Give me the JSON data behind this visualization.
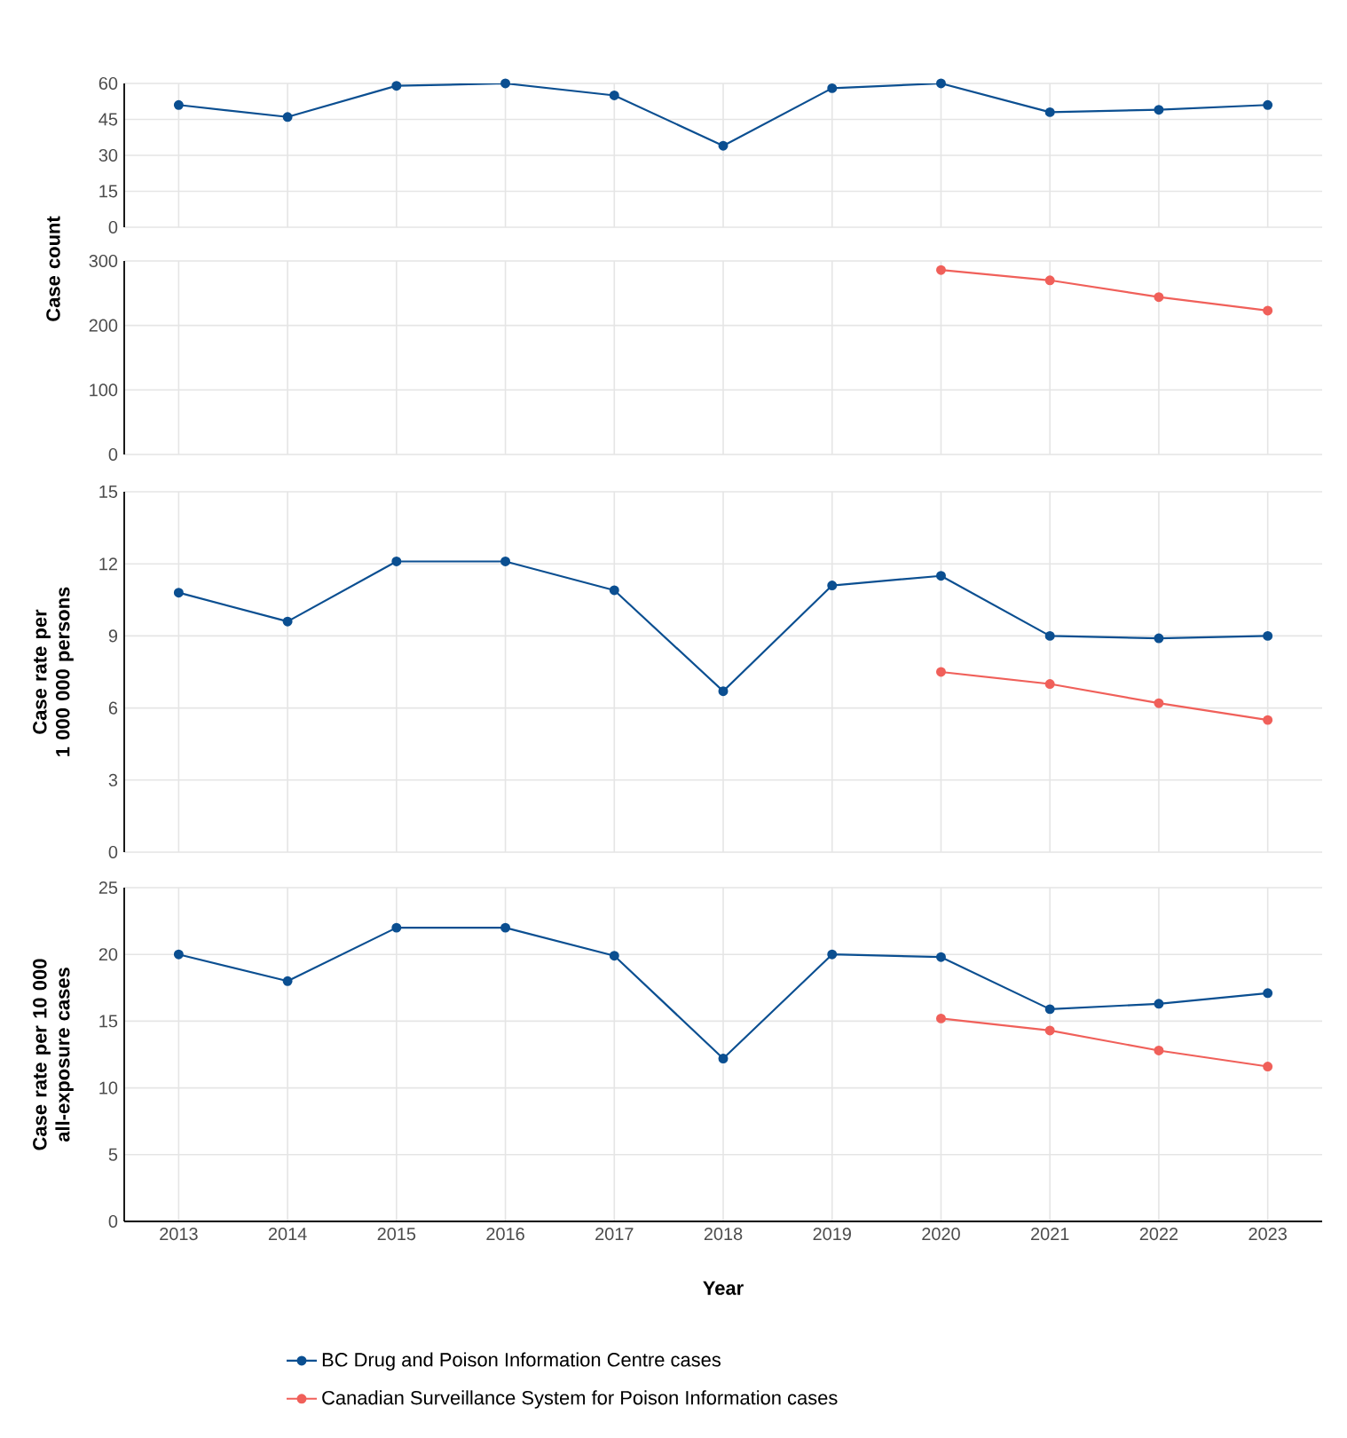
{
  "chart_data": [
    {
      "type": "line",
      "ylabel": "Case count",
      "categories": [
        "2013",
        "2014",
        "2015",
        "2016",
        "2017",
        "2018",
        "2019",
        "2020",
        "2021",
        "2022",
        "2023"
      ],
      "ylim": [
        0,
        60
      ],
      "yticks": [
        0,
        15,
        30,
        45,
        60
      ],
      "grid": true,
      "marker": "circle",
      "tick_labels": "y",
      "series": [
        {
          "color": "#0b4f91",
          "values": [
            51,
            46,
            59,
            60,
            55,
            34,
            58,
            60,
            48,
            49,
            51
          ]
        }
      ]
    },
    {
      "type": "line",
      "categories": [
        "2013",
        "2014",
        "2015",
        "2016",
        "2017",
        "2018",
        "2019",
        "2020",
        "2021",
        "2022",
        "2023"
      ],
      "ylim": [
        0,
        300
      ],
      "yticks": [
        0,
        100,
        200,
        300
      ],
      "grid": true,
      "marker": "circle",
      "tick_labels": "y",
      "series": [
        {
          "color": "#f0605a",
          "values": [
            null,
            null,
            null,
            null,
            null,
            null,
            null,
            286,
            270,
            244,
            223
          ]
        }
      ]
    },
    {
      "type": "line",
      "ylabel": "Case rate per 1 000 000 persons",
      "categories": [
        "2013",
        "2014",
        "2015",
        "2016",
        "2017",
        "2018",
        "2019",
        "2020",
        "2021",
        "2022",
        "2023"
      ],
      "ylim": [
        0,
        15
      ],
      "yticks": [
        0,
        3,
        6,
        9,
        12,
        15
      ],
      "grid": true,
      "marker": "circle",
      "tick_labels": "y",
      "series": [
        {
          "color": "#0b4f91",
          "values": [
            10.8,
            9.6,
            12.1,
            12.1,
            10.9,
            6.7,
            11.1,
            11.5,
            9.0,
            8.9,
            9.0
          ]
        },
        {
          "color": "#f0605a",
          "values": [
            null,
            null,
            null,
            null,
            null,
            null,
            null,
            7.5,
            7.0,
            6.2,
            5.5
          ]
        }
      ]
    },
    {
      "type": "line",
      "xlabel": "Year",
      "ylabel": "Case rate per 10 000 all-exposure cases",
      "categories": [
        "2013",
        "2014",
        "2015",
        "2016",
        "2017",
        "2018",
        "2019",
        "2020",
        "2021",
        "2022",
        "2023"
      ],
      "ylim": [
        0,
        25
      ],
      "yticks": [
        0,
        5,
        10,
        15,
        20,
        25
      ],
      "grid": true,
      "marker": "circle",
      "legend": "bottom",
      "series": [
        {
          "name": "BC Drug and Poison Information Centre cases",
          "color": "#0b4f91",
          "values": [
            20.0,
            18.0,
            22.0,
            22.0,
            19.9,
            12.2,
            20.0,
            19.8,
            15.9,
            16.3,
            17.1
          ]
        },
        {
          "name": "Canadian Surveillance System for Poison Information cases",
          "color": "#f0605a",
          "values": [
            null,
            null,
            null,
            null,
            null,
            null,
            null,
            15.2,
            14.3,
            12.8,
            11.6
          ]
        }
      ]
    }
  ]
}
